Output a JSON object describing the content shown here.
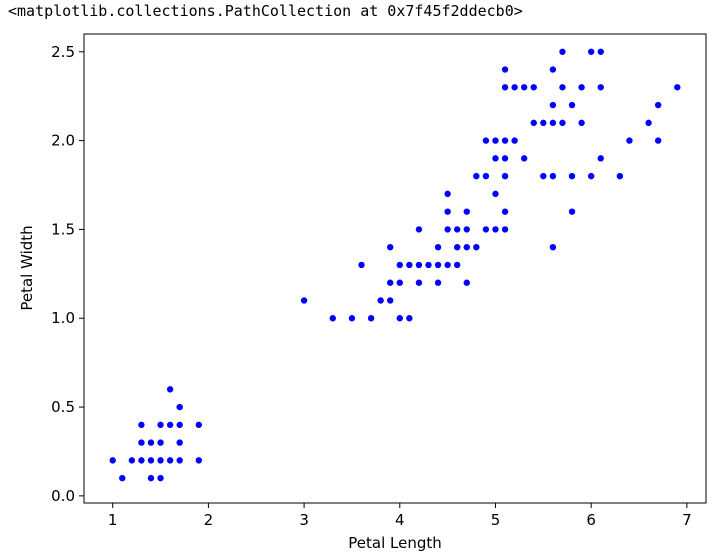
{
  "output_text": "<matplotlib.collections.PathCollection at 0x7f45f2ddecb0>",
  "chart_data": {
    "type": "scatter",
    "title": "",
    "xlabel": "Petal Length",
    "ylabel": "Petal Width",
    "xlim": [
      0.7,
      7.2
    ],
    "ylim": [
      -0.04,
      2.6
    ],
    "x_ticks": [
      1,
      2,
      3,
      4,
      5,
      6,
      7
    ],
    "x_tick_labels": [
      "1",
      "2",
      "3",
      "4",
      "5",
      "6",
      "7"
    ],
    "y_ticks": [
      0.0,
      0.5,
      1.0,
      1.5,
      2.0,
      2.5
    ],
    "y_tick_labels": [
      "0.0",
      "0.5",
      "1.0",
      "1.5",
      "2.0",
      "2.5"
    ],
    "grid": false,
    "marker_color": "#0000ff",
    "points": [
      [
        1.0,
        0.2
      ],
      [
        1.1,
        0.1
      ],
      [
        1.2,
        0.2
      ],
      [
        1.3,
        0.2
      ],
      [
        1.3,
        0.3
      ],
      [
        1.3,
        0.4
      ],
      [
        1.4,
        0.1
      ],
      [
        1.4,
        0.2
      ],
      [
        1.4,
        0.3
      ],
      [
        1.5,
        0.1
      ],
      [
        1.5,
        0.2
      ],
      [
        1.5,
        0.3
      ],
      [
        1.5,
        0.4
      ],
      [
        1.6,
        0.2
      ],
      [
        1.6,
        0.4
      ],
      [
        1.6,
        0.6
      ],
      [
        1.7,
        0.2
      ],
      [
        1.7,
        0.3
      ],
      [
        1.7,
        0.4
      ],
      [
        1.7,
        0.5
      ],
      [
        1.9,
        0.2
      ],
      [
        1.9,
        0.4
      ],
      [
        3.0,
        1.1
      ],
      [
        3.3,
        1.0
      ],
      [
        3.5,
        1.0
      ],
      [
        3.6,
        1.3
      ],
      [
        3.7,
        1.0
      ],
      [
        3.8,
        1.1
      ],
      [
        3.9,
        1.1
      ],
      [
        3.9,
        1.2
      ],
      [
        3.9,
        1.4
      ],
      [
        4.0,
        1.0
      ],
      [
        4.0,
        1.2
      ],
      [
        4.0,
        1.3
      ],
      [
        4.1,
        1.0
      ],
      [
        4.1,
        1.3
      ],
      [
        4.2,
        1.2
      ],
      [
        4.2,
        1.3
      ],
      [
        4.2,
        1.5
      ],
      [
        4.3,
        1.3
      ],
      [
        4.4,
        1.2
      ],
      [
        4.4,
        1.3
      ],
      [
        4.4,
        1.4
      ],
      [
        4.5,
        1.3
      ],
      [
        4.5,
        1.5
      ],
      [
        4.5,
        1.6
      ],
      [
        4.5,
        1.7
      ],
      [
        4.6,
        1.3
      ],
      [
        4.6,
        1.4
      ],
      [
        4.6,
        1.5
      ],
      [
        4.7,
        1.2
      ],
      [
        4.7,
        1.4
      ],
      [
        4.7,
        1.5
      ],
      [
        4.7,
        1.6
      ],
      [
        4.8,
        1.4
      ],
      [
        4.8,
        1.8
      ],
      [
        4.9,
        1.5
      ],
      [
        4.9,
        1.8
      ],
      [
        4.9,
        2.0
      ],
      [
        5.0,
        1.5
      ],
      [
        5.0,
        1.7
      ],
      [
        5.0,
        1.9
      ],
      [
        5.0,
        2.0
      ],
      [
        5.1,
        1.5
      ],
      [
        5.1,
        1.6
      ],
      [
        5.1,
        1.8
      ],
      [
        5.1,
        1.9
      ],
      [
        5.1,
        2.0
      ],
      [
        5.1,
        2.3
      ],
      [
        5.1,
        2.4
      ],
      [
        5.2,
        2.0
      ],
      [
        5.2,
        2.3
      ],
      [
        5.3,
        1.9
      ],
      [
        5.3,
        2.3
      ],
      [
        5.4,
        2.1
      ],
      [
        5.4,
        2.3
      ],
      [
        5.5,
        1.8
      ],
      [
        5.5,
        2.1
      ],
      [
        5.6,
        1.4
      ],
      [
        5.6,
        1.8
      ],
      [
        5.6,
        2.1
      ],
      [
        5.6,
        2.2
      ],
      [
        5.6,
        2.4
      ],
      [
        5.7,
        2.1
      ],
      [
        5.7,
        2.3
      ],
      [
        5.7,
        2.5
      ],
      [
        5.8,
        1.6
      ],
      [
        5.8,
        1.8
      ],
      [
        5.8,
        2.2
      ],
      [
        5.9,
        2.1
      ],
      [
        5.9,
        2.3
      ],
      [
        6.0,
        1.8
      ],
      [
        6.0,
        2.5
      ],
      [
        6.1,
        1.9
      ],
      [
        6.1,
        2.3
      ],
      [
        6.1,
        2.5
      ],
      [
        6.3,
        1.8
      ],
      [
        6.4,
        2.0
      ],
      [
        6.6,
        2.1
      ],
      [
        6.7,
        2.0
      ],
      [
        6.7,
        2.2
      ],
      [
        6.9,
        2.3
      ]
    ]
  }
}
